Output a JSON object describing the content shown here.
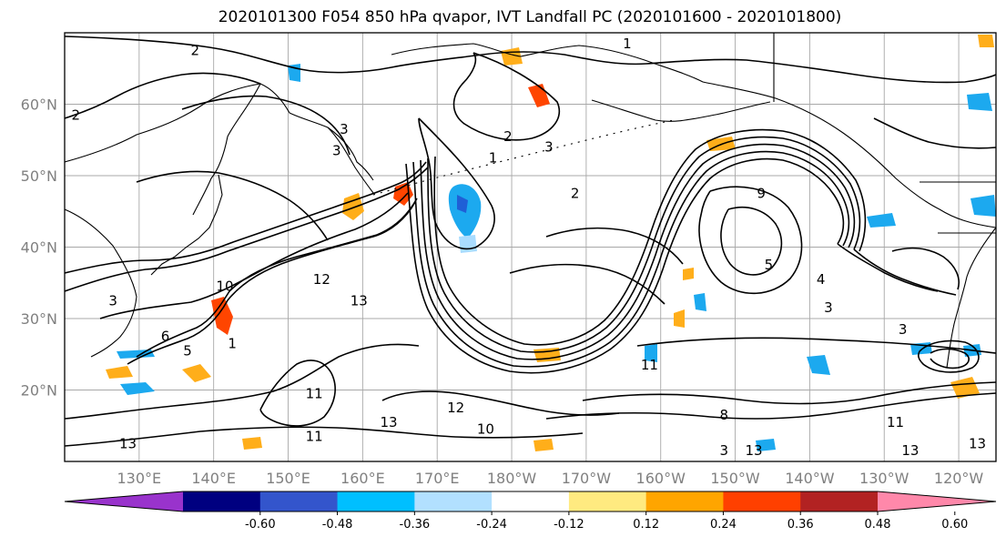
{
  "title": "2020101300 F054 850 hPa qvapor, IVT Landfall PC (2020101600 - 2020101800)",
  "map": {
    "lon_range": [
      120,
      245
    ],
    "lat_range": [
      10,
      70
    ],
    "lat_ticks": [
      {
        "lat": 60,
        "label": "60°N"
      },
      {
        "lat": 50,
        "label": "50°N"
      },
      {
        "lat": 40,
        "label": "40°N"
      },
      {
        "lat": 30,
        "label": "30°N"
      },
      {
        "lat": 20,
        "label": "20°N"
      }
    ],
    "lon_ticks": [
      {
        "lon": 130,
        "label": "130°E"
      },
      {
        "lon": 140,
        "label": "140°E"
      },
      {
        "lon": 150,
        "label": "150°E"
      },
      {
        "lon": 160,
        "label": "160°E"
      },
      {
        "lon": 170,
        "label": "170°E"
      },
      {
        "lon": 180,
        "label": "180°W"
      },
      {
        "lon": 190,
        "label": "170°W"
      },
      {
        "lon": 200,
        "label": "160°W"
      },
      {
        "lon": 210,
        "label": "150°W"
      },
      {
        "lon": 220,
        "label": "140°W"
      },
      {
        "lon": 230,
        "label": "130°W"
      },
      {
        "lon": 240,
        "label": "120°W"
      }
    ],
    "grid": true,
    "contour_labels": [
      {
        "text": "2",
        "lon": 137.5,
        "lat": 67.5
      },
      {
        "text": "1",
        "lon": 195.5,
        "lat": 68.5
      },
      {
        "text": "2",
        "lon": 121.5,
        "lat": 58.5
      },
      {
        "text": "3",
        "lon": 157.5,
        "lat": 56.5
      },
      {
        "text": "3",
        "lon": 156.5,
        "lat": 53.5
      },
      {
        "text": "1",
        "lon": 177.5,
        "lat": 52.5
      },
      {
        "text": "2",
        "lon": 188.5,
        "lat": 47.5
      },
      {
        "text": "2",
        "lon": 179.5,
        "lat": 55.5
      },
      {
        "text": "3",
        "lon": 185,
        "lat": 54
      },
      {
        "text": "9",
        "lon": 213.5,
        "lat": 47.5
      },
      {
        "text": "5",
        "lon": 214.5,
        "lat": 37.5
      },
      {
        "text": "4",
        "lon": 221.5,
        "lat": 35.5
      },
      {
        "text": "3",
        "lon": 222.5,
        "lat": 31.5
      },
      {
        "text": "3",
        "lon": 232.5,
        "lat": 28.5
      },
      {
        "text": "12",
        "lon": 154.5,
        "lat": 35.5
      },
      {
        "text": "13",
        "lon": 159.5,
        "lat": 32.5
      },
      {
        "text": "10",
        "lon": 141.5,
        "lat": 34.5
      },
      {
        "text": "6",
        "lon": 133.5,
        "lat": 27.5
      },
      {
        "text": "5",
        "lon": 136.5,
        "lat": 25.5
      },
      {
        "text": "1",
        "lon": 142.5,
        "lat": 26.5
      },
      {
        "text": "11",
        "lon": 153.5,
        "lat": 19.5
      },
      {
        "text": "11",
        "lon": 153.5,
        "lat": 13.5
      },
      {
        "text": "12",
        "lon": 172.5,
        "lat": 17.5
      },
      {
        "text": "13",
        "lon": 163.5,
        "lat": 15.5
      },
      {
        "text": "13",
        "lon": 128.5,
        "lat": 12.5
      },
      {
        "text": "11",
        "lon": 198.5,
        "lat": 23.5
      },
      {
        "text": "10",
        "lon": 176.5,
        "lat": 14.5
      },
      {
        "text": "8",
        "lon": 208.5,
        "lat": 16.5
      },
      {
        "text": "13",
        "lon": 212.5,
        "lat": 11.5
      },
      {
        "text": "3",
        "lon": 208.5,
        "lat": 11.5
      },
      {
        "text": "13",
        "lon": 233.5,
        "lat": 11.5
      },
      {
        "text": "13",
        "lon": 242.5,
        "lat": 12.5
      },
      {
        "text": "11",
        "lon": 231.5,
        "lat": 15.5
      },
      {
        "text": "3",
        "lon": 126.5,
        "lat": 32.5
      }
    ]
  },
  "colorbar": {
    "ticks": [
      "-0.60",
      "-0.48",
      "-0.36",
      "-0.24",
      "-0.12",
      "0.12",
      "0.24",
      "0.36",
      "0.48",
      "0.60"
    ],
    "colors": [
      "#9933cc",
      "#000080",
      "#3355cc",
      "#00bfff",
      "#b2e0ff",
      "#ffffff",
      "#ffea80",
      "#ffa500",
      "#ff4000",
      "#b22222",
      "#ff88aa"
    ]
  },
  "shading": {
    "colors": {
      "strong_neg": "#1f5fd6",
      "neg": "#1ca9ef",
      "light_neg": "#a9dcff",
      "pos": "#ffae1a",
      "strong_pos": "#ff4500"
    }
  }
}
